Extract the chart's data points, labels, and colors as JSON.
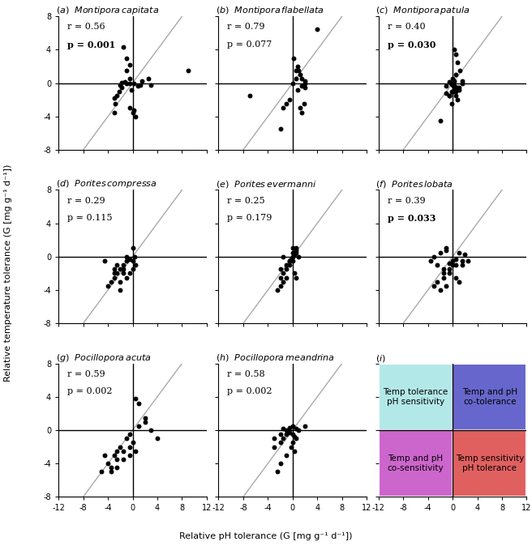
{
  "panels": [
    {
      "label": "a",
      "title": "Montipora capitata",
      "r": "0.56",
      "p": "0.001",
      "p_bold": true,
      "x": [
        -1.5,
        -1,
        -0.5,
        -1,
        -0.5,
        -1.2,
        -1.8,
        -2,
        -1.8,
        -2.2,
        -2.5,
        -3,
        -2.8,
        -3,
        -0.5,
        0.2,
        0,
        0.5,
        0.8,
        1.2,
        1.5,
        2.5,
        3,
        -0.2,
        0.2,
        -0.5,
        -1,
        9
      ],
      "y": [
        4.3,
        3,
        2.2,
        1.5,
        0.5,
        0.2,
        0.1,
        -0.2,
        -0.5,
        -1,
        -1.5,
        -1.8,
        -2.5,
        -3.5,
        -3,
        -3.2,
        -3.5,
        -4,
        -0.3,
        -0.2,
        0.3,
        0.5,
        -0.2,
        -0.8,
        0,
        0,
        0,
        1.5
      ]
    },
    {
      "label": "b",
      "title": "Montipora flabellata",
      "r": "0.79",
      "p": "0.077",
      "p_bold": false,
      "x": [
        0.2,
        0.5,
        0.8,
        1,
        1.2,
        1.5,
        1.5,
        2,
        2,
        0,
        -0.5,
        -1,
        -1.5,
        -2,
        -7,
        0.8,
        1.2,
        1.5,
        1.8,
        0.5,
        2,
        4
      ],
      "y": [
        3,
        1.5,
        2,
        1.5,
        1,
        0.5,
        -0.3,
        0,
        -0.5,
        0,
        -2,
        -2.5,
        -3,
        -5.5,
        -1.5,
        -0.8,
        -3,
        -3.5,
        -2.5,
        0.5,
        0.3,
        6.5
      ]
    },
    {
      "label": "c",
      "title": "Montipora patula",
      "r": "0.40",
      "p": "0.030",
      "p_bold": true,
      "x": [
        0.2,
        0.5,
        0.8,
        1.2,
        0.5,
        0,
        0.2,
        -0.5,
        -0.3,
        0,
        0.3,
        0.5,
        0.8,
        1,
        1.5,
        0,
        -0.5,
        0.5,
        0.8,
        -0.2,
        0,
        0.3,
        -1,
        -0.5,
        -2,
        -1,
        1,
        1.5,
        0.2,
        0.5,
        -0.2
      ],
      "y": [
        4,
        3.5,
        2.5,
        1.5,
        1,
        0.5,
        0.3,
        0.2,
        0,
        -0.2,
        -0.3,
        -0.5,
        -0.5,
        -0.8,
        0.3,
        -1,
        -1.5,
        -1.5,
        -2,
        -2.5,
        -1,
        -0.5,
        -1.2,
        -1.5,
        -4.5,
        -0.3,
        -0.5,
        0,
        -0.3,
        -1,
        -1
      ]
    },
    {
      "label": "d",
      "title": "Porites compressa",
      "r": "0.29",
      "p": "0.115",
      "p_bold": false,
      "x": [
        0,
        0.3,
        -0.5,
        -1,
        -1.5,
        -2,
        -2.5,
        -3,
        -3.5,
        -4,
        -3,
        -2,
        -1.5,
        -1,
        0,
        0.5,
        0,
        -0.5,
        -1,
        -2,
        -3,
        -2.5,
        -1.5,
        -4.5
      ],
      "y": [
        1,
        0,
        -0.3,
        -0.5,
        -1,
        -1.5,
        -2,
        -2.5,
        -3,
        -3.5,
        -1.5,
        -3,
        -2,
        0,
        -0.5,
        -1,
        -1.5,
        -2,
        -2.5,
        -4,
        -2,
        -1,
        -1.5,
        -0.5
      ]
    },
    {
      "label": "e",
      "title": "Porites evermanni",
      "r": "0.25",
      "p": "0.179",
      "p_bold": false,
      "x": [
        0,
        0.5,
        0.5,
        0.3,
        0,
        -0.3,
        -0.5,
        -1,
        -1,
        -1.5,
        -2,
        -2,
        -1.5,
        -0.5,
        0,
        0.5,
        1,
        0,
        -0.5,
        0.3,
        0.5,
        -1,
        -1.5,
        -2,
        -2.5
      ],
      "y": [
        1,
        0.8,
        0.5,
        0.3,
        0,
        -0.3,
        -0.5,
        -1,
        -1.5,
        -2,
        -2.5,
        -1.5,
        0,
        -0.5,
        0.5,
        1,
        0,
        -0.5,
        -1,
        -2,
        -2.5,
        -2.5,
        -3,
        -3.5,
        -4
      ]
    },
    {
      "label": "f",
      "title": "Porites lobata",
      "r": "0.39",
      "p": "0.033",
      "p_bold": true,
      "x": [
        -1,
        -2,
        -3,
        -3.5,
        -2.5,
        -1.5,
        -0.5,
        0.5,
        1,
        2,
        1.5,
        0.5,
        -0.5,
        -1.5,
        -2.5,
        -3,
        -1,
        -2,
        -1.5,
        -0.5,
        0,
        0.5,
        1,
        -1,
        0,
        1.5,
        2.5
      ],
      "y": [
        1,
        0.5,
        0,
        -0.5,
        -1,
        -1.5,
        -2,
        -2.5,
        -3,
        0.3,
        -0.5,
        -1,
        -1.5,
        -2.5,
        -3,
        -3.5,
        -3.5,
        -4,
        -2,
        -0.8,
        -0.5,
        -0.3,
        0.5,
        0.8,
        -1,
        -1,
        -0.5
      ]
    },
    {
      "label": "g",
      "title": "Pocillopora acuta",
      "r": "0.59",
      "p": "0.002",
      "p_bold": false,
      "x": [
        0.5,
        1,
        2,
        3,
        4,
        -0.5,
        -1,
        -2,
        -2.5,
        -3,
        -4,
        -5,
        -3.5,
        -2.5,
        -1.5,
        -0.5,
        0,
        0.5,
        -0.5,
        -1.5,
        -2.5,
        -3.5,
        -4.5,
        1,
        2
      ],
      "y": [
        3.8,
        3.2,
        1,
        0,
        -1,
        -0.5,
        -1,
        -2,
        -2.5,
        -3,
        -4,
        -5,
        -4.5,
        -3.5,
        -2.5,
        -2,
        -1.5,
        -2.5,
        -3,
        -3.5,
        -4.5,
        -5,
        -3,
        0.5,
        1.5
      ]
    },
    {
      "label": "h",
      "title": "Pocillopora meandrina",
      "r": "0.58",
      "p": "0.002",
      "p_bold": false,
      "x": [
        0,
        0.5,
        1,
        -0.5,
        -1,
        -1.5,
        -2,
        -3,
        0,
        0.3,
        0.5,
        -0.5,
        -1,
        -1.5,
        -2,
        0,
        -0.3,
        0.3,
        -1,
        -2,
        -2.5,
        -3,
        2
      ],
      "y": [
        0.5,
        0.2,
        0,
        -0.3,
        -0.5,
        -1,
        -1.5,
        -2,
        -0.5,
        -0.8,
        -1,
        0.3,
        0,
        0.2,
        -0.5,
        -1.5,
        -2,
        -2.5,
        -3,
        -4,
        -5,
        -1,
        0.5
      ]
    }
  ],
  "xlim": [
    -12,
    12
  ],
  "ylim": [
    -8,
    8
  ],
  "xticks": [
    -12,
    -8,
    -4,
    0,
    4,
    8,
    12
  ],
  "yticks": [
    -8,
    -4,
    0,
    4,
    8
  ],
  "xlabel": "Relative pH tolerance (G [mg g⁻¹ d⁻¹])",
  "ylabel": "Relative temperature tolerance (G [mg g⁻¹ d⁻¹])",
  "marker_size": 18,
  "marker_color": "black",
  "line_color": "#aaaaaa",
  "line_width": 1.0,
  "quad_colors": [
    "#b3e8e8",
    "#6666cc",
    "#cc66cc",
    "#e06060"
  ],
  "quad_labels": [
    "Temp tolerance\npH sensitivity",
    "Temp and pH\nco-tolerance",
    "Temp and pH\nco-sensitivity",
    "Temp sensitivity\npH tolerance"
  ],
  "font_size_title": 8,
  "font_size_stats": 8,
  "font_size_tick": 7,
  "font_size_axis": 8
}
